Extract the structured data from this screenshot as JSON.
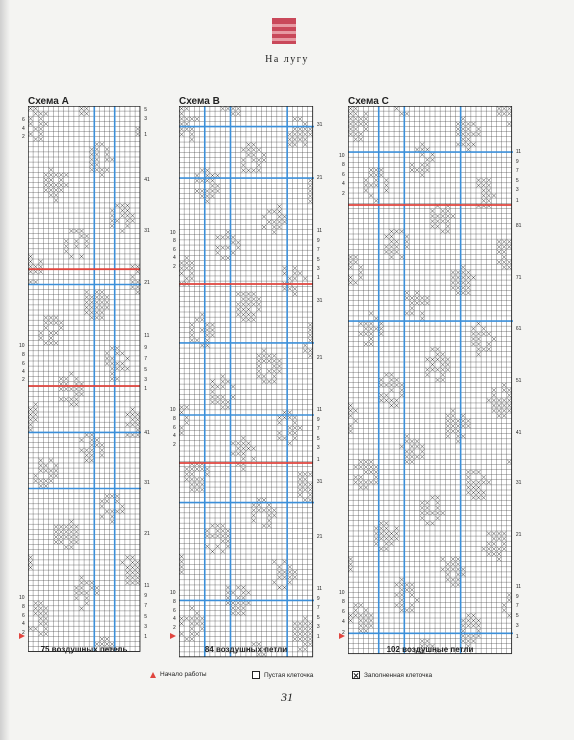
{
  "header": {
    "section_title": "На лугу"
  },
  "schemes": [
    {
      "title": "Схема А",
      "caption": "75 воздушных петель",
      "right_labels": [
        "5",
        "3",
        "1",
        "41",
        "31",
        "21",
        "11",
        "9",
        "7",
        "5",
        "3",
        "1",
        "41",
        "31",
        "21",
        "11",
        "9",
        "7",
        "5",
        "3",
        "1"
      ],
      "left_labels": [
        "6",
        "4",
        "2",
        "10",
        "8",
        "6",
        "4",
        "2",
        "10",
        "8",
        "6",
        "4",
        "2"
      ]
    },
    {
      "title": "Схема В",
      "caption": "84 воздушных петли",
      "right_labels": [
        "31",
        "21",
        "11",
        "9",
        "7",
        "5",
        "3",
        "1",
        "31",
        "21",
        "11",
        "9",
        "7",
        "5",
        "3",
        "1",
        "31",
        "21",
        "11",
        "9",
        "7",
        "5",
        "3",
        "1"
      ],
      "left_labels": [
        "10",
        "8",
        "6",
        "4",
        "2",
        "10",
        "8",
        "6",
        "4",
        "2",
        "10",
        "8",
        "6",
        "4",
        "2"
      ]
    },
    {
      "title": "Схема С",
      "caption": "102 воздушные петли",
      "right_labels": [
        "11",
        "9",
        "7",
        "5",
        "3",
        "1",
        "81",
        "71",
        "61",
        "51",
        "41",
        "31",
        "21",
        "11",
        "9",
        "7",
        "5",
        "3",
        "1"
      ],
      "left_labels": [
        "10",
        "8",
        "6",
        "4",
        "2",
        "10",
        "8",
        "6",
        "4",
        "2"
      ]
    }
  ],
  "legend": {
    "start": "Начало работы",
    "empty": "Пустая клеточка",
    "filled": "Заполненная клеточка"
  },
  "page_number": "31",
  "colors": {
    "accent_red": "#e0453e",
    "grid_blue": "#3b8fd9",
    "logo": "#c9485a"
  }
}
